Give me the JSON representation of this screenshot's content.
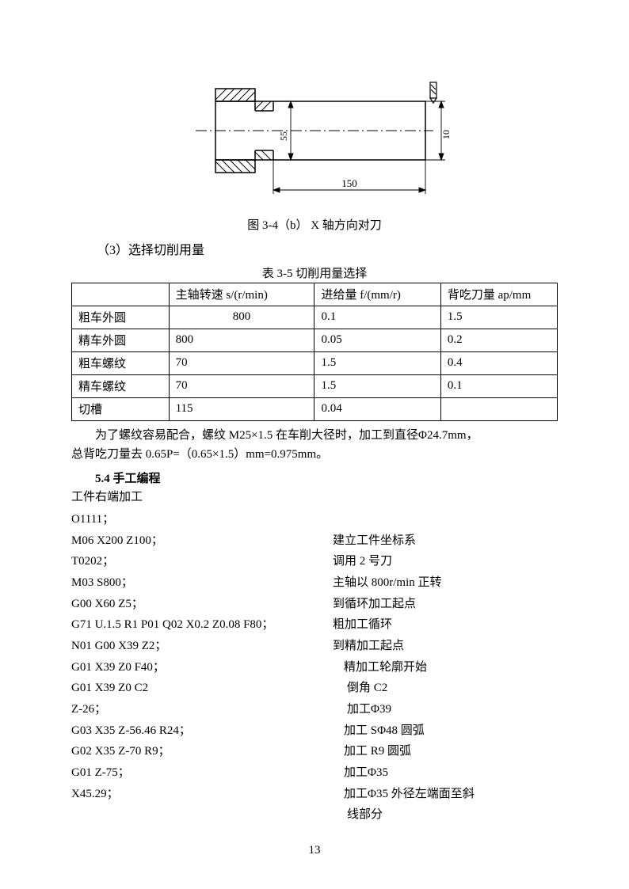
{
  "figure": {
    "caption": "图 3-4（b） X 轴方向对刀",
    "dim_horizontal": "150",
    "dim_vertical_left": "55",
    "dim_vertical_right": "10"
  },
  "section_select": {
    "label": "（3）选择切削用量"
  },
  "table": {
    "title": "表 3-5 切削用量选择",
    "headers": [
      "",
      "主轴转速 s/(r/min)",
      "进给量 f/(mm/r)",
      "背吃刀量 ap/mm"
    ],
    "rows": [
      [
        "粗车外圆",
        "800",
        "0.1",
        "1.5"
      ],
      [
        "精车外圆",
        "800",
        "0.05",
        "0.2"
      ],
      [
        "粗车螺纹",
        "70",
        "1.5",
        "0.4"
      ],
      [
        "精车螺纹",
        "70",
        "1.5",
        "0.1"
      ],
      [
        "切槽",
        "115",
        "0.04",
        ""
      ]
    ],
    "col0_width": "20%",
    "col1_width": "30%",
    "col2_width": "26%",
    "col3_width": "24%",
    "row0_col1_center": true
  },
  "note": {
    "line1": "为了螺纹容易配合，螺纹 M25×1.5 在车削大径时，加工到直径Φ24.7mm，",
    "line2": "总背吃刀量去 0.65P=（0.65×1.5）mm=0.975mm。"
  },
  "heading_54": "5.4 手工编程",
  "subhead_right": "工件右端加工",
  "program": [
    {
      "l": "O1111；",
      "r": ""
    },
    {
      "l": "M06 X200 Z100；",
      "r": "建立工件坐标系"
    },
    {
      "l": "T0202；",
      "r": "调用 2 号刀"
    },
    {
      "l": "M03 S800；",
      "r": "主轴以 800r/min 正转"
    },
    {
      "l": "G00 X60 Z5；",
      "r": "到循环加工起点"
    },
    {
      "l": "G71 U.1.5 R1 P01 Q02 X0.2 Z0.08 F80；",
      "r": "粗加工循环"
    },
    {
      "l": "N01 G00 X39 Z2；",
      "r": "到精加工起点"
    },
    {
      "l": "G01 X39 Z0 F40；",
      "r": "精加工轮廓开始",
      "indent": 1
    },
    {
      "l": "G01 X39 Z0 C2",
      "r": "倒角 C2",
      "indent": 2
    },
    {
      "l": "Z-26；",
      "r": "加工Φ39",
      "indent": 2
    },
    {
      "l": "G03 X35 Z-56.46 R24；",
      "r": "加工 SΦ48 圆弧",
      "indent": 1
    },
    {
      "l": "G02 X35 Z-70 R9；",
      "r": "加工 R9 圆弧",
      "indent": 1
    },
    {
      "l": "G01 Z-75；",
      "r": "加工Φ35",
      "indent": 1
    },
    {
      "l": "X45.29；",
      "r": "加工Φ35 外径左端面至斜",
      "indent": 1
    },
    {
      "l": "",
      "r": "线部分",
      "indent": 2
    }
  ],
  "page_number": "13"
}
